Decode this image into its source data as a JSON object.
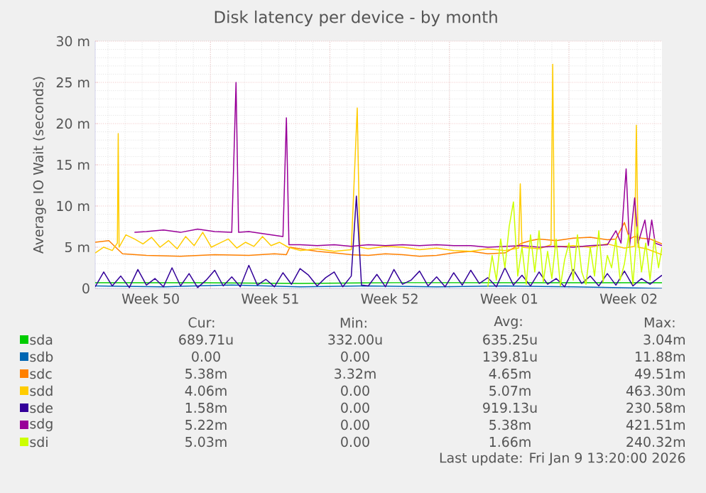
{
  "chart_data": {
    "type": "line",
    "title": "Disk latency per device - by month",
    "ylabel": "Average IO Wait (seconds)",
    "xlim": [
      "2025-12-08T06:00",
      "2026-01-10T10:48"
    ],
    "ylim": [
      0,
      30
    ],
    "xticks": [
      {
        "value": "2025-12-11T12:00",
        "label": "Week 50"
      },
      {
        "value": "2025-12-15T00:00",
        "label": null
      },
      {
        "value": "2025-12-18T12:00",
        "label": "Week 51"
      },
      {
        "value": "2025-12-22T00:00",
        "label": null
      },
      {
        "value": "2025-12-25T12:00",
        "label": "Week 52"
      },
      {
        "value": "2025-12-29T00:00",
        "label": null
      },
      {
        "value": "2026-01-01T12:00",
        "label": "Week 01"
      },
      {
        "value": "2026-01-05T00:00",
        "label": null
      },
      {
        "value": "2026-01-08T12:00",
        "label": "Week 02"
      }
    ],
    "yticks": [
      0,
      {
        "value": 5,
        "label": "5 m"
      },
      {
        "value": 10,
        "label": "10 m"
      },
      {
        "value": 15,
        "label": "15 m"
      },
      {
        "value": 20,
        "label": "20 m"
      },
      {
        "value": 25,
        "label": "25 m"
      },
      {
        "value": 30,
        "label": "30 m"
      }
    ],
    "grid": true,
    "legend": "bottom",
    "line_style": "solid",
    "series": [
      {
        "name": "sda",
        "color": "#00cc00",
        "x": [
          "2025-12-08T06:00",
          "2025-12-14T06:00",
          "2025-12-20T06:00",
          "2025-12-26T06:00",
          "2026-01-01T06:00",
          "2026-01-07T06:00",
          "2026-01-10T10:48"
        ],
        "values": [
          0.7,
          0.7,
          0.6,
          0.7,
          0.7,
          0.7,
          0.7
        ]
      },
      {
        "name": "sdb",
        "color": "#0066b3",
        "x": [
          "2025-12-08T06:00",
          "2025-12-12T06:00",
          "2025-12-16T06:00",
          "2025-12-20T06:00",
          "2025-12-24T06:00",
          "2025-12-28T06:00",
          "2026-01-01T06:00",
          "2026-01-05T06:00",
          "2026-01-10T10:48"
        ],
        "values": [
          0.3,
          0.2,
          0.4,
          0.2,
          0.3,
          0.2,
          0.3,
          0.2,
          0
        ]
      },
      {
        "name": "sdc",
        "color": "#ff8000",
        "x": [
          "2025-12-08T06:00",
          "2025-12-09T01:12",
          "2025-12-09T20:24",
          "2025-12-11T06:00",
          "2025-12-13T06:00",
          "2025-12-15T06:00",
          "2025-12-17T06:00",
          "2025-12-18T18:00",
          "2025-12-19T10:48",
          "2025-12-19T15:36",
          "2025-12-20T06:00",
          "2025-12-21T06:00",
          "2025-12-22T06:00",
          "2025-12-23T06:00",
          "2025-12-24T06:00",
          "2025-12-25T06:00",
          "2025-12-26T06:00",
          "2025-12-27T06:00",
          "2025-12-28T06:00",
          "2025-12-29T06:00",
          "2025-12-30T06:00",
          "2025-12-31T06:00",
          "2026-01-01T06:00",
          "2026-01-02T06:00",
          "2026-01-02T18:00",
          "2026-01-03T06:00",
          "2026-01-04T06:00",
          "2026-01-05T06:00",
          "2026-01-06T06:00",
          "2026-01-07T06:00",
          "2026-01-07T18:00",
          "2026-01-08T06:00",
          "2026-01-08T13:12",
          "2026-01-08T20:24",
          "2026-01-09T06:00",
          "2026-01-09T18:00",
          "2026-01-10T10:48"
        ],
        "values": [
          5.6,
          5.8,
          4.2,
          4.0,
          3.9,
          4.1,
          4.0,
          4.2,
          4.1,
          5.0,
          4.8,
          4.5,
          4.3,
          4.1,
          4.0,
          4.2,
          4.1,
          3.9,
          4.0,
          4.3,
          4.5,
          4.2,
          4.3,
          5.5,
          5.8,
          6.0,
          5.8,
          6.1,
          6.2,
          5.9,
          6.0,
          8.0,
          6.0,
          6.3,
          6.1,
          6.0,
          5.4
        ]
      },
      {
        "name": "sdd",
        "color": "#ffcc00",
        "x": [
          "2025-12-08T06:00",
          "2025-12-08T18:00",
          "2025-12-09T06:00",
          "2025-12-09T13:12",
          "2025-12-09T14:24",
          "2025-12-09T15:36",
          "2025-12-10T01:12",
          "2025-12-10T13:12",
          "2025-12-11T01:12",
          "2025-12-11T13:12",
          "2025-12-12T01:12",
          "2025-12-12T13:12",
          "2025-12-13T01:12",
          "2025-12-13T13:12",
          "2025-12-14T01:12",
          "2025-12-14T13:12",
          "2025-12-15T01:12",
          "2025-12-15T13:12",
          "2025-12-16T01:12",
          "2025-12-16T13:12",
          "2025-12-17T01:12",
          "2025-12-17T13:12",
          "2025-12-18T01:12",
          "2025-12-18T13:12",
          "2025-12-19T01:12",
          "2025-12-19T13:12",
          "2025-12-20T06:00",
          "2025-12-21T06:00",
          "2025-12-22T06:00",
          "2025-12-23T06:00",
          "2025-12-23T14:24",
          "2025-12-23T18:00",
          "2025-12-24T06:00",
          "2025-12-25T06:00",
          "2025-12-26T06:00",
          "2025-12-27T06:00",
          "2025-12-28T06:00",
          "2025-12-29T06:00",
          "2025-12-30T06:00",
          "2025-12-31T06:00",
          "2026-01-01T06:00",
          "2026-01-02T01:12",
          "2026-01-02T03:36",
          "2026-01-02T06:00",
          "2026-01-03T06:00",
          "2026-01-03T22:48",
          "2026-01-04T01:12",
          "2026-01-04T03:36",
          "2026-01-05T06:00",
          "2026-01-06T06:00",
          "2026-01-07T06:00",
          "2026-01-08T06:00",
          "2026-01-08T20:24",
          "2026-01-08T22:48",
          "2026-01-09T01:12",
          "2026-01-09T13:12",
          "2026-01-10T10:48"
        ],
        "values": [
          4.3,
          5.0,
          4.6,
          5.5,
          18.8,
          5.0,
          6.5,
          6.0,
          5.4,
          6.2,
          5.0,
          5.8,
          4.8,
          6.3,
          5.2,
          6.8,
          5.0,
          5.5,
          6.0,
          4.9,
          5.6,
          5.1,
          6.3,
          5.2,
          5.6,
          5.0,
          4.6,
          4.8,
          4.5,
          4.7,
          21.9,
          5.0,
          4.8,
          5.1,
          5.0,
          4.7,
          4.9,
          4.6,
          4.5,
          4.8,
          4.6,
          4.9,
          12.7,
          5.0,
          4.8,
          5.3,
          27.2,
          5.0,
          5.2,
          5.0,
          5.4,
          4.9,
          5.1,
          19.8,
          5.0,
          4.8,
          4.1
        ]
      },
      {
        "name": "sde",
        "color": "#330099",
        "x": [
          "2025-12-08T06:00",
          "2025-12-08T18:00",
          "2025-12-09T06:00",
          "2025-12-09T18:00",
          "2025-12-10T06:00",
          "2025-12-10T18:00",
          "2025-12-11T06:00",
          "2025-12-11T18:00",
          "2025-12-12T06:00",
          "2025-12-12T18:00",
          "2025-12-13T06:00",
          "2025-12-13T18:00",
          "2025-12-14T06:00",
          "2025-12-14T18:00",
          "2025-12-15T06:00",
          "2025-12-15T18:00",
          "2025-12-16T06:00",
          "2025-12-16T18:00",
          "2025-12-17T06:00",
          "2025-12-17T18:00",
          "2025-12-18T06:00",
          "2025-12-18T18:00",
          "2025-12-19T06:00",
          "2025-12-19T18:00",
          "2025-12-20T06:00",
          "2025-12-20T18:00",
          "2025-12-21T06:00",
          "2025-12-21T18:00",
          "2025-12-22T06:00",
          "2025-12-22T18:00",
          "2025-12-23T06:00",
          "2025-12-23T13:12",
          "2025-12-23T20:24",
          "2025-12-24T06:00",
          "2025-12-24T18:00",
          "2025-12-25T06:00",
          "2025-12-25T18:00",
          "2025-12-26T06:00",
          "2025-12-26T18:00",
          "2025-12-27T06:00",
          "2025-12-27T18:00",
          "2025-12-28T06:00",
          "2025-12-28T18:00",
          "2025-12-29T06:00",
          "2025-12-29T18:00",
          "2025-12-30T06:00",
          "2025-12-30T18:00",
          "2025-12-31T06:00",
          "2025-12-31T18:00",
          "2026-01-01T06:00",
          "2026-01-01T18:00",
          "2026-01-02T06:00",
          "2026-01-02T18:00",
          "2026-01-03T06:00",
          "2026-01-03T18:00",
          "2026-01-04T06:00",
          "2026-01-04T18:00",
          "2026-01-05T06:00",
          "2026-01-05T18:00",
          "2026-01-06T06:00",
          "2026-01-06T18:00",
          "2026-01-07T06:00",
          "2026-01-07T18:00",
          "2026-01-08T06:00",
          "2026-01-08T18:00",
          "2026-01-09T06:00",
          "2026-01-09T18:00",
          "2026-01-10T10:48"
        ],
        "values": [
          0.2,
          2.0,
          0.3,
          1.5,
          0.1,
          2.3,
          0.4,
          1.2,
          0.2,
          2.5,
          0.3,
          1.8,
          0.1,
          1.0,
          2.2,
          0.3,
          1.4,
          0.2,
          2.8,
          0.4,
          1.1,
          0.2,
          1.9,
          0.5,
          2.4,
          1.6,
          0.3,
          1.3,
          2.0,
          0.2,
          1.5,
          11.2,
          0.4,
          0.3,
          1.7,
          0.2,
          2.3,
          0.5,
          1.0,
          2.1,
          0.3,
          1.4,
          0.2,
          1.9,
          0.4,
          2.2,
          0.6,
          1.3,
          0.2,
          2.5,
          0.4,
          1.6,
          0.3,
          2.0,
          0.5,
          1.2,
          0.2,
          2.3,
          0.6,
          1.5,
          0.3,
          1.8,
          0.4,
          2.1,
          0.3,
          1.2,
          0.5,
          1.6
        ]
      },
      {
        "name": "sdg",
        "color": "#990099",
        "x": [
          "2025-12-10T13:12",
          "2025-12-11T06:00",
          "2025-12-12T06:00",
          "2025-12-13T06:00",
          "2025-12-14T06:00",
          "2025-12-15T06:00",
          "2025-12-16T06:00",
          "2025-12-16T12:00",
          "2025-12-16T15:36",
          "2025-12-17T06:00",
          "2025-12-18T06:00",
          "2025-12-19T06:00",
          "2025-12-19T10:48",
          "2025-12-19T14:24",
          "2025-12-20T06:00",
          "2025-12-21T06:00",
          "2025-12-22T06:00",
          "2025-12-23T06:00",
          "2025-12-24T06:00",
          "2025-12-25T06:00",
          "2025-12-26T06:00",
          "2025-12-27T06:00",
          "2025-12-28T06:00",
          "2025-12-29T06:00",
          "2025-12-30T06:00",
          "2025-12-31T06:00",
          "2026-01-01T06:00",
          "2026-01-02T06:00",
          "2026-01-03T06:00",
          "2026-01-04T06:00",
          "2026-01-05T06:00",
          "2026-01-06T06:00",
          "2026-01-07T06:00",
          "2026-01-07T18:00",
          "2026-01-08T01:12",
          "2026-01-08T08:24",
          "2026-01-08T13:12",
          "2026-01-08T20:24",
          "2026-01-09T01:12",
          "2026-01-09T10:48",
          "2026-01-09T15:36",
          "2026-01-09T20:24",
          "2026-01-10T01:12",
          "2026-01-10T10:48"
        ],
        "values": [
          6.8,
          6.9,
          7.1,
          6.8,
          7.2,
          6.9,
          6.8,
          25.0,
          6.8,
          6.9,
          6.6,
          6.3,
          20.7,
          5.3,
          5.3,
          5.2,
          5.3,
          5.1,
          5.3,
          5.2,
          5.3,
          5.2,
          5.3,
          5.2,
          5.2,
          5.0,
          5.1,
          5.2,
          5.0,
          5.1,
          5.0,
          5.2,
          5.3,
          7.0,
          5.5,
          14.5,
          5.0,
          11.0,
          5.5,
          8.3,
          5.2,
          8.3,
          5.5,
          5.2
        ]
      },
      {
        "name": "sdi",
        "color": "#ccff00",
        "x": [
          "2025-12-31T06:00",
          "2025-12-31T12:00",
          "2025-12-31T18:00",
          "2026-01-01T00:00",
          "2026-01-01T06:00",
          "2026-01-01T12:00",
          "2026-01-01T18:00",
          "2026-01-02T00:00",
          "2026-01-02T06:00",
          "2026-01-02T12:00",
          "2026-01-02T18:00",
          "2026-01-03T00:00",
          "2026-01-03T06:00",
          "2026-01-03T12:00",
          "2026-01-03T18:00",
          "2026-01-04T00:00",
          "2026-01-04T06:00",
          "2026-01-04T12:00",
          "2026-01-04T18:00",
          "2026-01-05T00:00",
          "2026-01-05T06:00",
          "2026-01-05T12:00",
          "2026-01-05T18:00",
          "2026-01-06T00:00",
          "2026-01-06T06:00",
          "2026-01-06T12:00",
          "2026-01-06T18:00",
          "2026-01-07T00:00",
          "2026-01-07T06:00",
          "2026-01-07T12:00",
          "2026-01-07T18:00",
          "2026-01-08T00:00",
          "2026-01-08T06:00",
          "2026-01-08T12:00",
          "2026-01-08T18:00",
          "2026-01-09T00:00",
          "2026-01-09T06:00",
          "2026-01-09T12:00",
          "2026-01-09T18:00",
          "2026-01-10T00:00",
          "2026-01-10T06:00",
          "2026-01-10T10:48"
        ],
        "values": [
          0.2,
          4.0,
          1.0,
          6.0,
          2.5,
          7.5,
          10.5,
          1.5,
          5.0,
          0.5,
          6.5,
          2.0,
          7.0,
          0.8,
          4.5,
          1.2,
          6.0,
          0.3,
          3.5,
          5.5,
          1.0,
          6.5,
          2.0,
          0.5,
          5.0,
          1.5,
          7.0,
          0.8,
          4.0,
          2.5,
          6.0,
          1.0,
          3.0,
          6.5,
          0.5,
          7.5,
          2.0,
          5.5,
          1.0,
          6.0,
          2.5,
          5.0
        ]
      }
    ],
    "annotations": [
      "Cur:",
      "Min:",
      "Avg:",
      "Max:",
      "689.71u",
      "332.00u",
      "635.25u",
      "3.04m",
      "0.00",
      "0.00",
      "139.81u",
      "11.88m",
      "5.38m",
      "3.32m",
      "4.65m",
      "49.51m",
      "4.06m",
      "0.00",
      "5.07m",
      "463.30m",
      "1.58m",
      "0.00",
      "919.13u",
      "230.58m",
      "5.22m",
      "0.00",
      "5.38m",
      "421.51m",
      "5.03m",
      "0.00",
      "1.66m",
      "240.32m",
      "Last update: Fri Jan  9 13:20:00 2026"
    ]
  }
}
